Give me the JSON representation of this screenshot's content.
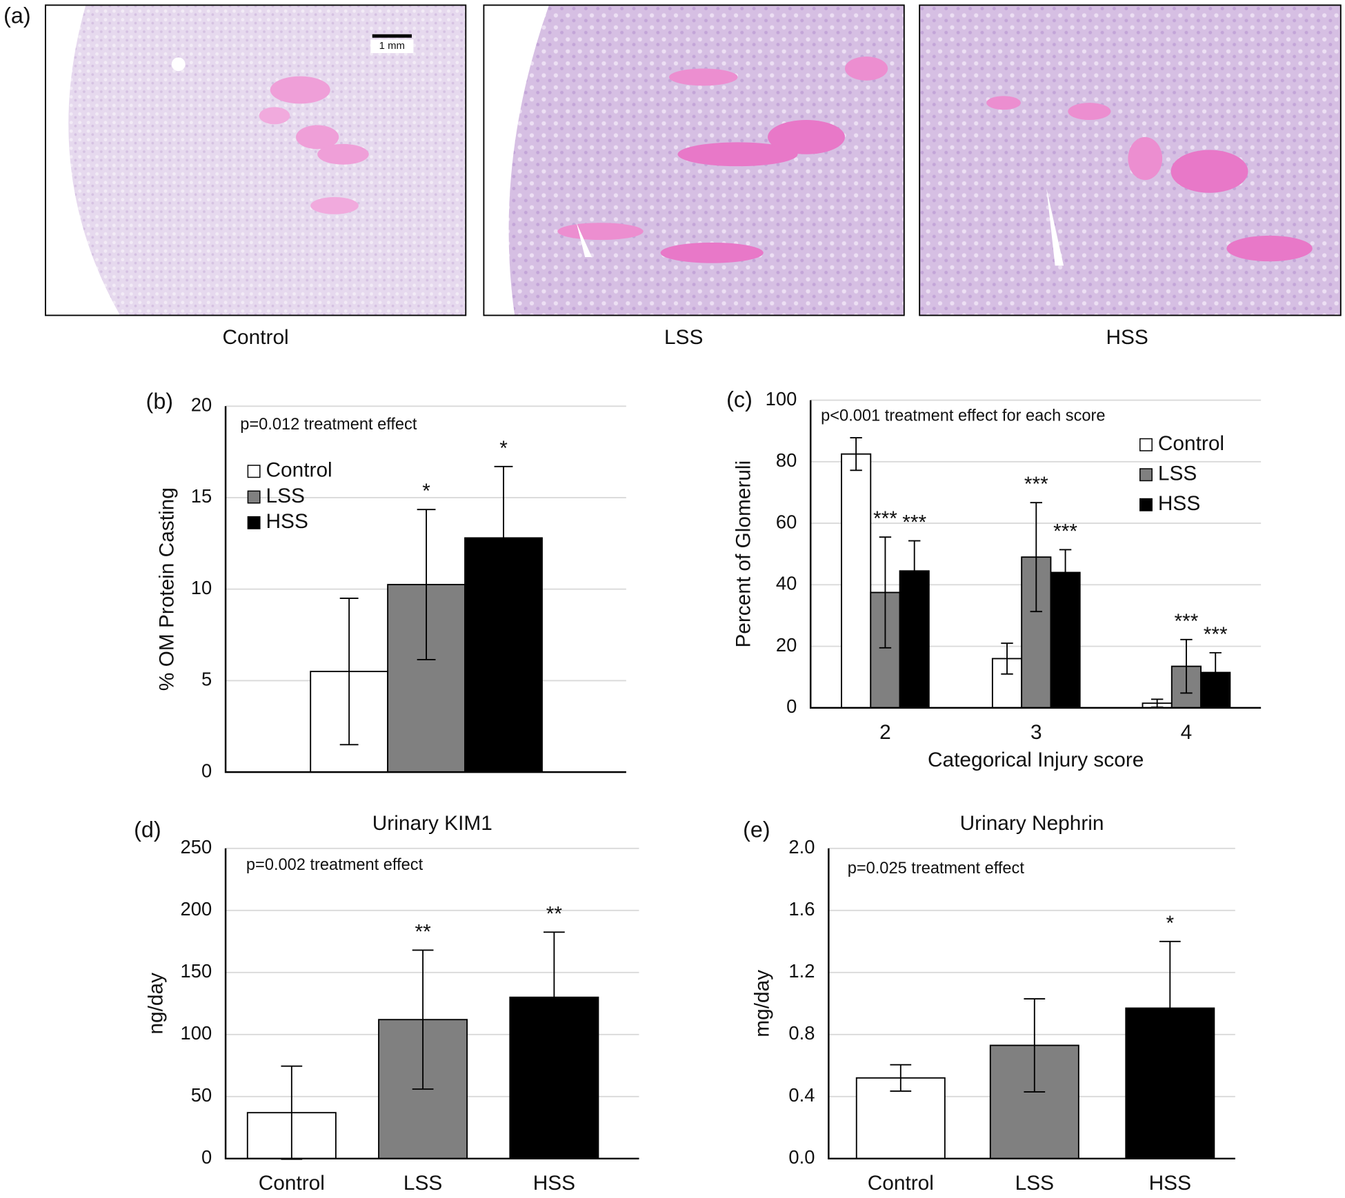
{
  "panel_a": {
    "label": "(a)",
    "scale_bar": "1 mm",
    "captions": [
      "Control",
      "LSS",
      "HSS"
    ]
  },
  "chart_data": [
    {
      "type": "bar",
      "panel_label": "(b)",
      "annotation": "p=0.012 treatment effect",
      "ylabel": "% OM Protein Casting",
      "ylim": [
        0,
        20
      ],
      "yticks": [
        0,
        5,
        10,
        15,
        20
      ],
      "grid": true,
      "legend": "upper-left",
      "series": [
        {
          "name": "Control",
          "color": "#ffffff",
          "values": [
            5.5
          ],
          "errors": [
            4.0
          ],
          "significance": [
            null
          ]
        },
        {
          "name": "LSS",
          "color": "#808080",
          "values": [
            10.25
          ],
          "errors": [
            4.1
          ],
          "significance": [
            "*"
          ]
        },
        {
          "name": "HSS",
          "color": "#000000",
          "values": [
            12.8
          ],
          "errors": [
            3.9
          ],
          "significance": [
            "*"
          ]
        }
      ]
    },
    {
      "type": "bar",
      "panel_label": "(c)",
      "annotation": "p<0.001 treatment effect for each score",
      "ylabel": "Percent of Glomeruli",
      "xlabel": "Categorical Injury score",
      "categories": [
        "2",
        "3",
        "4"
      ],
      "ylim": [
        0,
        100
      ],
      "yticks": [
        0,
        20,
        40,
        60,
        80,
        100
      ],
      "grid": true,
      "legend": "upper-right",
      "series": [
        {
          "name": "Control",
          "color": "#ffffff",
          "values": [
            82.5,
            16,
            1.5
          ],
          "errors": [
            5.3,
            5,
            1.3
          ],
          "significance": [
            null,
            null,
            null
          ]
        },
        {
          "name": "LSS",
          "color": "#808080",
          "values": [
            37.5,
            49,
            13.5
          ],
          "errors": [
            18,
            17.7,
            8.7
          ],
          "significance": [
            "***",
            "***",
            "***"
          ]
        },
        {
          "name": "HSS",
          "color": "#000000",
          "values": [
            44.5,
            44,
            11.5
          ],
          "errors": [
            9.8,
            7.4,
            6.4
          ],
          "significance": [
            "***",
            "***",
            "***"
          ]
        }
      ]
    },
    {
      "type": "bar",
      "panel_label": "(d)",
      "title": "Urinary KIM1",
      "annotation": "p=0.002 treatment effect",
      "ylabel": "ng/day",
      "categories": [
        "Control",
        "LSS",
        "HSS"
      ],
      "values": [
        37,
        112,
        130
      ],
      "errors": [
        37.5,
        56,
        52.5
      ],
      "significance": [
        null,
        "**",
        "**"
      ],
      "colors": [
        "#ffffff",
        "#808080",
        "#000000"
      ],
      "ylim": [
        0,
        250
      ],
      "yticks": [
        0,
        50,
        100,
        150,
        200,
        250
      ],
      "grid": true
    },
    {
      "type": "bar",
      "panel_label": "(e)",
      "title": "Urinary Nephrin",
      "annotation": "p=0.025 treatment effect",
      "ylabel": "mg/day",
      "categories": [
        "Control",
        "LSS",
        "HSS"
      ],
      "values": [
        0.52,
        0.73,
        0.97
      ],
      "errors": [
        0.085,
        0.3,
        0.43
      ],
      "significance": [
        null,
        null,
        "*"
      ],
      "colors": [
        "#ffffff",
        "#808080",
        "#000000"
      ],
      "ylim": [
        0,
        2
      ],
      "yticks": [
        {
          "value": 0,
          "label": "0.0"
        },
        0.4,
        0.8,
        1.2,
        1.6,
        {
          "value": 2,
          "label": "2.0"
        }
      ],
      "grid": true
    }
  ]
}
